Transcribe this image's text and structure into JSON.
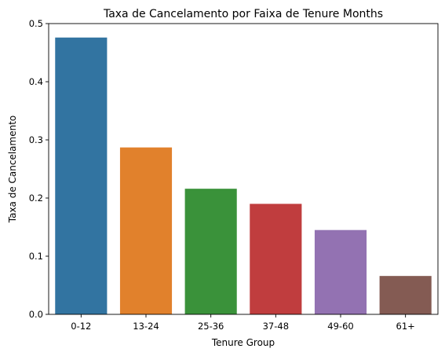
{
  "chart_data": {
    "type": "bar",
    "title": "Taxa de Cancelamento por Faixa de Tenure Months",
    "xlabel": "Tenure Group",
    "ylabel": "Taxa de Cancelamento",
    "categories": [
      "0-12",
      "13-24",
      "25-36",
      "37-48",
      "49-60",
      "61+"
    ],
    "values": [
      0.476,
      0.287,
      0.216,
      0.19,
      0.145,
      0.066
    ],
    "colors": [
      "#3274a1",
      "#e1812c",
      "#3a923a",
      "#c03d3e",
      "#9372b2",
      "#845b53"
    ],
    "ylim": [
      0,
      0.5
    ],
    "yticks": [
      0.0,
      0.1,
      0.2,
      0.3,
      0.4,
      0.5
    ],
    "ytick_labels": [
      "0.0",
      "0.1",
      "0.2",
      "0.3",
      "0.4",
      "0.5"
    ],
    "grid": false,
    "legend": "none"
  }
}
